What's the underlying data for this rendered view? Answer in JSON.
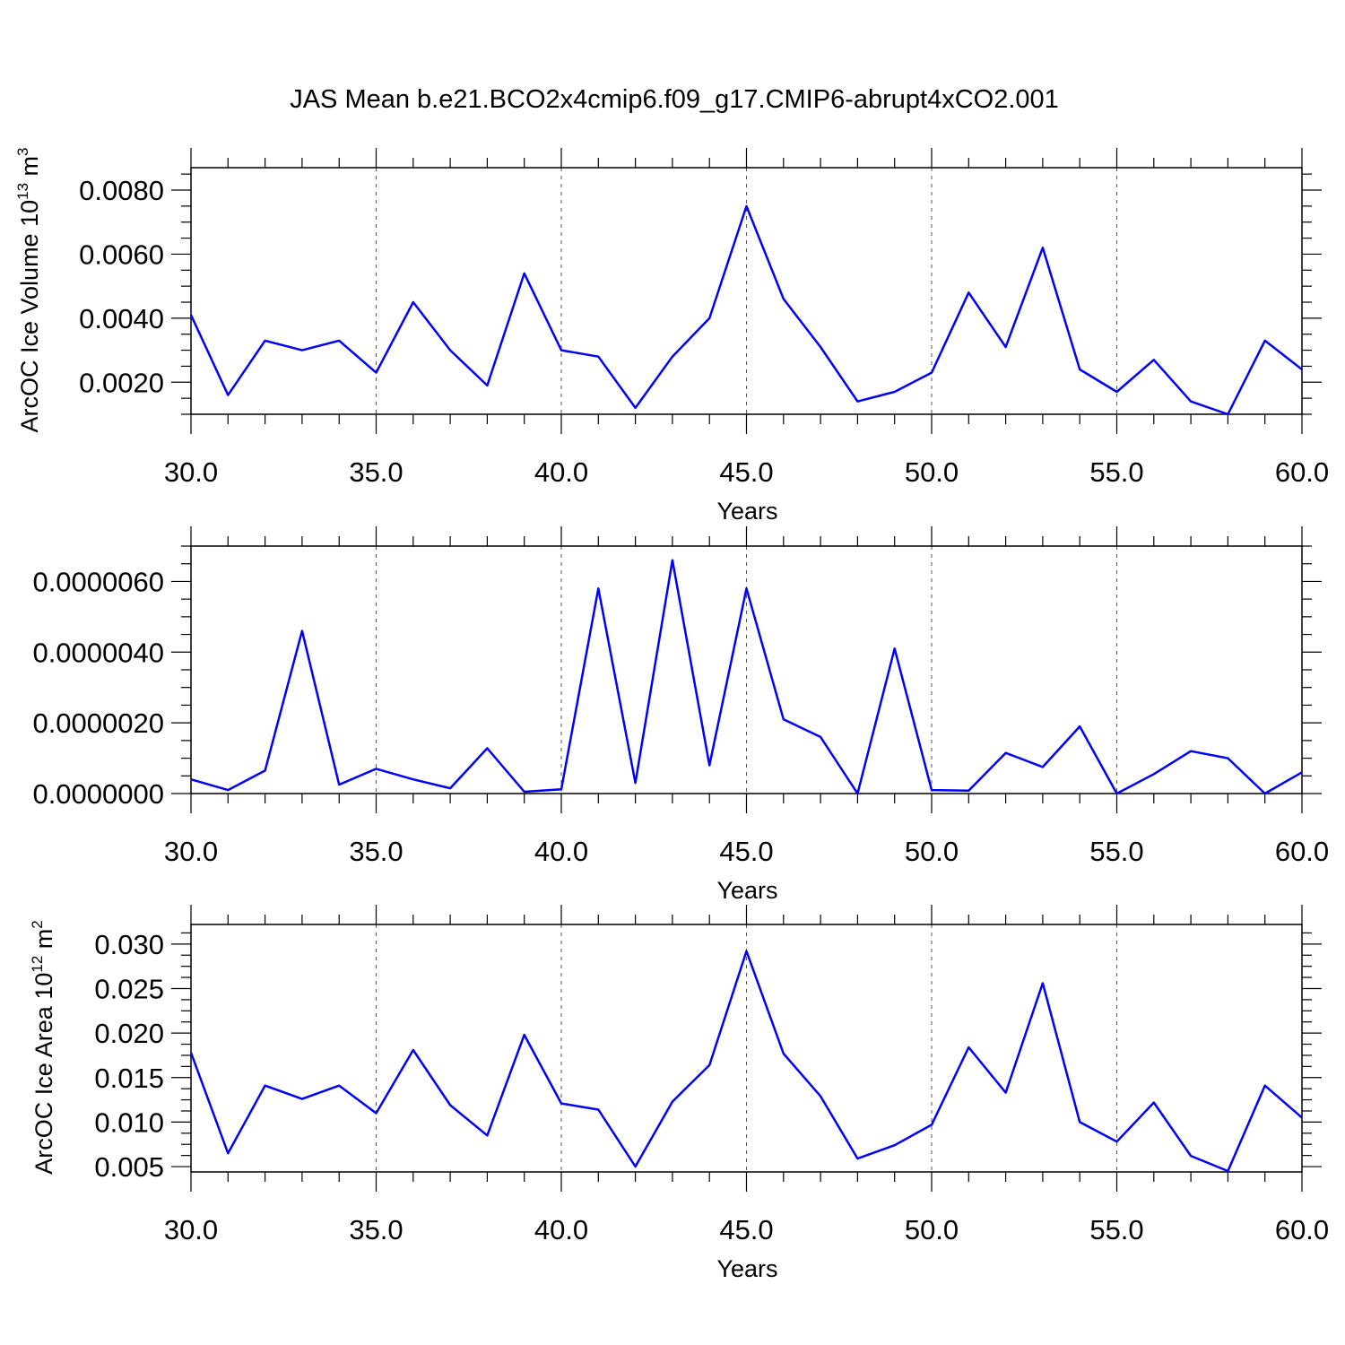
{
  "title": "JAS Mean b.e21.BCO2x4cmip6.f09_g17.CMIP6-abrupt4xCO2.001",
  "colors": {
    "series": "#0000ff",
    "frame": "#000000",
    "grid": "#555555"
  },
  "chart_data": [
    {
      "type": "line",
      "xlabel": "Years",
      "ylabel": "ArcOC Ice Volume 10",
      "ylabel_sup": "13",
      "ylabel_unit": " m",
      "ylabel_unit_sup": "3",
      "xlim": [
        30,
        60
      ],
      "ylim": [
        0.001,
        0.0087
      ],
      "xticks": [
        30,
        35,
        40,
        45,
        50,
        55,
        60
      ],
      "xtick_labels": [
        "30.0",
        "35.0",
        "40.0",
        "45.0",
        "50.0",
        "55.0",
        "60.0"
      ],
      "yticks": [
        0.002,
        0.004,
        0.006,
        0.008
      ],
      "ytick_labels": [
        "0.0020",
        "0.0040",
        "0.0060",
        "0.0080"
      ],
      "grid": "vertical dashed at major x ticks",
      "series": [
        {
          "x": [
            30,
            31,
            32,
            33,
            34,
            35,
            36,
            37,
            38,
            39,
            40,
            41,
            42,
            43,
            44,
            45,
            46,
            47,
            48,
            49,
            50,
            51,
            52,
            53,
            54,
            55,
            56,
            57,
            58,
            59,
            60
          ],
          "values": [
            0.0041,
            0.0016,
            0.0033,
            0.003,
            0.0033,
            0.0023,
            0.0045,
            0.003,
            0.0019,
            0.0054,
            0.003,
            0.0028,
            0.0012,
            0.0028,
            0.004,
            0.0075,
            0.0046,
            0.0031,
            0.0014,
            0.0017,
            0.0023,
            0.0048,
            0.0031,
            0.0062,
            0.0024,
            0.0017,
            0.0027,
            0.0014,
            0.001,
            0.0033,
            0.0024
          ]
        }
      ]
    },
    {
      "type": "line",
      "xlabel": "Years",
      "ylabel": "",
      "xlim": [
        30,
        60
      ],
      "ylim": [
        0.0,
        7e-06
      ],
      "xticks": [
        30,
        35,
        40,
        45,
        50,
        55,
        60
      ],
      "xtick_labels": [
        "30.0",
        "35.0",
        "40.0",
        "45.0",
        "50.0",
        "55.0",
        "60.0"
      ],
      "yticks": [
        0.0,
        2e-06,
        4e-06,
        6e-06
      ],
      "ytick_labels": [
        "0.0000000",
        "0.0000020",
        "0.0000040",
        "0.0000060"
      ],
      "grid": "vertical dashed at major x ticks",
      "series": [
        {
          "x": [
            30,
            31,
            32,
            33,
            34,
            35,
            36,
            37,
            38,
            39,
            40,
            41,
            42,
            43,
            44,
            45,
            46,
            47,
            48,
            49,
            50,
            51,
            52,
            53,
            54,
            55,
            56,
            57,
            58,
            59,
            60
          ],
          "values": [
            4e-07,
            1e-07,
            6.5e-07,
            4.6e-06,
            2.5e-07,
            7e-07,
            4e-07,
            1.5e-07,
            1.28e-06,
            5e-08,
            1.2e-07,
            5.8e-06,
            3e-07,
            6.6e-06,
            8e-07,
            5.8e-06,
            2.1e-06,
            1.6e-06,
            0.0,
            4.1e-06,
            1e-07,
            8e-08,
            1.15e-06,
            7.5e-07,
            1.9e-06,
            0.0,
            5.5e-07,
            1.2e-06,
            1e-06,
            0.0,
            6e-07
          ]
        }
      ]
    },
    {
      "type": "line",
      "xlabel": "Years",
      "ylabel": "ArcOC Ice Area 10",
      "ylabel_sup": "12",
      "ylabel_unit": " m",
      "ylabel_unit_sup": "2",
      "xlim": [
        30,
        60
      ],
      "ylim": [
        0.0044,
        0.0322
      ],
      "xticks": [
        30,
        35,
        40,
        45,
        50,
        55,
        60
      ],
      "xtick_labels": [
        "30.0",
        "35.0",
        "40.0",
        "45.0",
        "50.0",
        "55.0",
        "60.0"
      ],
      "yticks": [
        0.005,
        0.01,
        0.015,
        0.02,
        0.025,
        0.03
      ],
      "ytick_labels": [
        "0.005",
        "0.010",
        "0.015",
        "0.020",
        "0.025",
        "0.030"
      ],
      "grid": "vertical dashed at major x ticks",
      "series": [
        {
          "x": [
            30,
            31,
            32,
            33,
            34,
            35,
            36,
            37,
            38,
            39,
            40,
            41,
            42,
            43,
            44,
            45,
            46,
            47,
            48,
            49,
            50,
            51,
            52,
            53,
            54,
            55,
            56,
            57,
            58,
            59,
            60
          ],
          "values": [
            0.0178,
            0.0065,
            0.0141,
            0.0126,
            0.0141,
            0.011,
            0.0181,
            0.0119,
            0.0085,
            0.0198,
            0.0121,
            0.0114,
            0.005,
            0.0123,
            0.0164,
            0.0292,
            0.0177,
            0.0129,
            0.0059,
            0.0074,
            0.0097,
            0.0184,
            0.0133,
            0.0256,
            0.01,
            0.0078,
            0.0122,
            0.0062,
            0.0045,
            0.0141,
            0.0105
          ]
        }
      ]
    }
  ]
}
